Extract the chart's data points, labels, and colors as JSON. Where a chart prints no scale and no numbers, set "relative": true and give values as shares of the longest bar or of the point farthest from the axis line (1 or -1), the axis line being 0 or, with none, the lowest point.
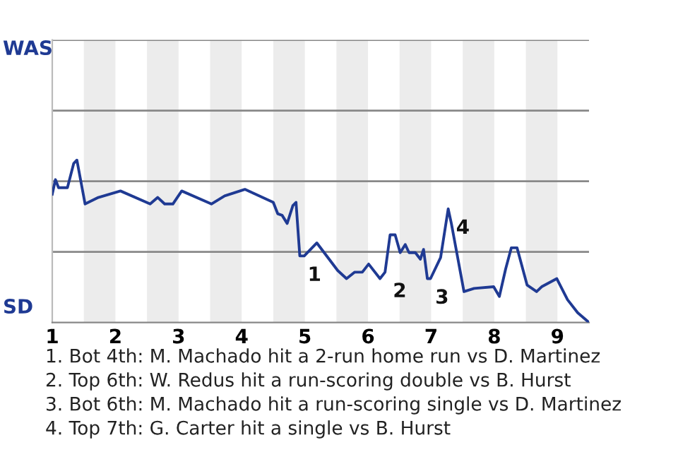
{
  "chart_data": {
    "type": "line",
    "relative": true,
    "x": [
      1.0,
      1.05,
      1.1,
      1.24,
      1.34,
      1.39,
      1.52,
      1.73,
      2.08,
      2.55,
      2.67,
      2.78,
      2.91,
      3.05,
      3.52,
      3.73,
      4.05,
      4.5,
      4.57,
      4.64,
      4.72,
      4.81,
      4.86,
      4.92,
      4.99,
      5.19,
      5.52,
      5.66,
      5.79,
      5.91,
      6.01,
      6.19,
      6.27,
      6.35,
      6.43,
      6.51,
      6.59,
      6.65,
      6.75,
      6.83,
      6.88,
      6.94,
      6.99,
      7.15,
      7.27,
      7.32,
      7.52,
      7.68,
      7.99,
      8.08,
      8.18,
      8.27,
      8.36,
      8.52,
      8.67,
      8.75,
      8.99,
      9.16,
      9.32,
      9.5
    ],
    "series": [
      {
        "color": "#1f3a93",
        "values": [
          0.79,
          0.88,
          0.83,
          0.83,
          0.98,
          1,
          0.73,
          0.77,
          0.81,
          0.73,
          0.77,
          0.73,
          0.73,
          0.81,
          0.73,
          0.78,
          0.82,
          0.74,
          0.67,
          0.66,
          0.61,
          0.72,
          0.74,
          0.41,
          0.41,
          0.49,
          0.32,
          0.27,
          0.31,
          0.31,
          0.36,
          0.27,
          0.31,
          0.54,
          0.54,
          0.43,
          0.48,
          0.43,
          0.43,
          0.39,
          0.45,
          0.27,
          0.27,
          0.4,
          0.7,
          0.61,
          0.19,
          0.21,
          0.22,
          0.16,
          0.33,
          0.46,
          0.46,
          0.23,
          0.19,
          0.22,
          0.27,
          0.14,
          0.06,
          0
        ]
      }
    ],
    "xlim": [
      1,
      9.5
    ],
    "xticks": [
      1,
      2,
      3,
      4,
      5,
      6,
      7,
      8,
      9
    ],
    "ref_lines": [
      {
        "axis": "y",
        "value": 0.435,
        "color": "#888888"
      },
      {
        "axis": "y",
        "value": 0.87,
        "color": "#888888"
      },
      {
        "axis": "y",
        "value": 1.305,
        "color": "#888888"
      },
      {
        "axis": "y",
        "value": 1.74,
        "color": "#888888"
      }
    ],
    "bands": [
      {
        "axis": "x",
        "from": 1.5,
        "to": 2,
        "color": "#ececec"
      },
      {
        "axis": "x",
        "from": 2.5,
        "to": 3,
        "color": "#ececec"
      },
      {
        "axis": "x",
        "from": 3.5,
        "to": 4,
        "color": "#ececec"
      },
      {
        "axis": "x",
        "from": 4.5,
        "to": 5,
        "color": "#ececec"
      },
      {
        "axis": "x",
        "from": 5.5,
        "to": 6,
        "color": "#ececec"
      },
      {
        "axis": "x",
        "from": 6.5,
        "to": 7,
        "color": "#ececec"
      },
      {
        "axis": "x",
        "from": 7.5,
        "to": 8,
        "color": "#ececec"
      },
      {
        "axis": "x",
        "from": 8.5,
        "to": 9,
        "color": "#ececec"
      }
    ],
    "annotations": [
      "WAS",
      "SD",
      {
        "text": "1",
        "x": 4.92,
        "y": 0.41
      },
      {
        "text": "2",
        "x": 6.27,
        "y": 0.31
      },
      {
        "text": "3",
        "x": 6.94,
        "y": 0.27
      },
      {
        "text": "4",
        "x": 7.27,
        "y": 0.7
      },
      "1. Bot 4th: M. Machado hit a 2-run home run vs D. Martinez",
      "2. Top 6th: W. Redus hit a run-scoring double vs B. Hurst",
      "3. Bot 6th: M. Machado hit a run-scoring single vs D. Martinez",
      "4. Top 7th: G. Carter hit a single vs B. Hurst"
    ]
  }
}
